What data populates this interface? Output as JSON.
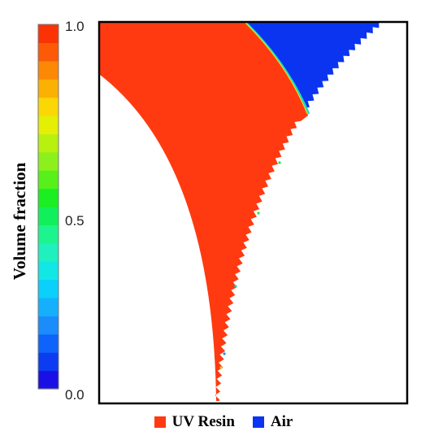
{
  "chart_data": {
    "type": "heatmap",
    "colorbar": {
      "label": "Volume fraction",
      "ticks": [
        "1.0",
        "0.5",
        "0.0"
      ],
      "tick_values": [
        1.0,
        0.5,
        0.0
      ],
      "range": [
        0.0,
        1.0
      ],
      "levels": 20,
      "colors": [
        "#1a10e6",
        "#0b3cf2",
        "#0e63fb",
        "#1b8cfb",
        "#15b0fb",
        "#0ad0fb",
        "#12e7e5",
        "#1ff0be",
        "#1ef48e",
        "#11f05a",
        "#1bef22",
        "#58f01a",
        "#8cf01c",
        "#b8f10f",
        "#e4ef05",
        "#fbd805",
        "#fcb003",
        "#fc8806",
        "#fc5a07",
        "#fb3304"
      ]
    },
    "materials": [
      {
        "name": "UV Resin",
        "value": 1.0,
        "color": "#ff3a10"
      },
      {
        "name": "Air",
        "value": 0.0,
        "color": "#0a34f0"
      }
    ]
  }
}
